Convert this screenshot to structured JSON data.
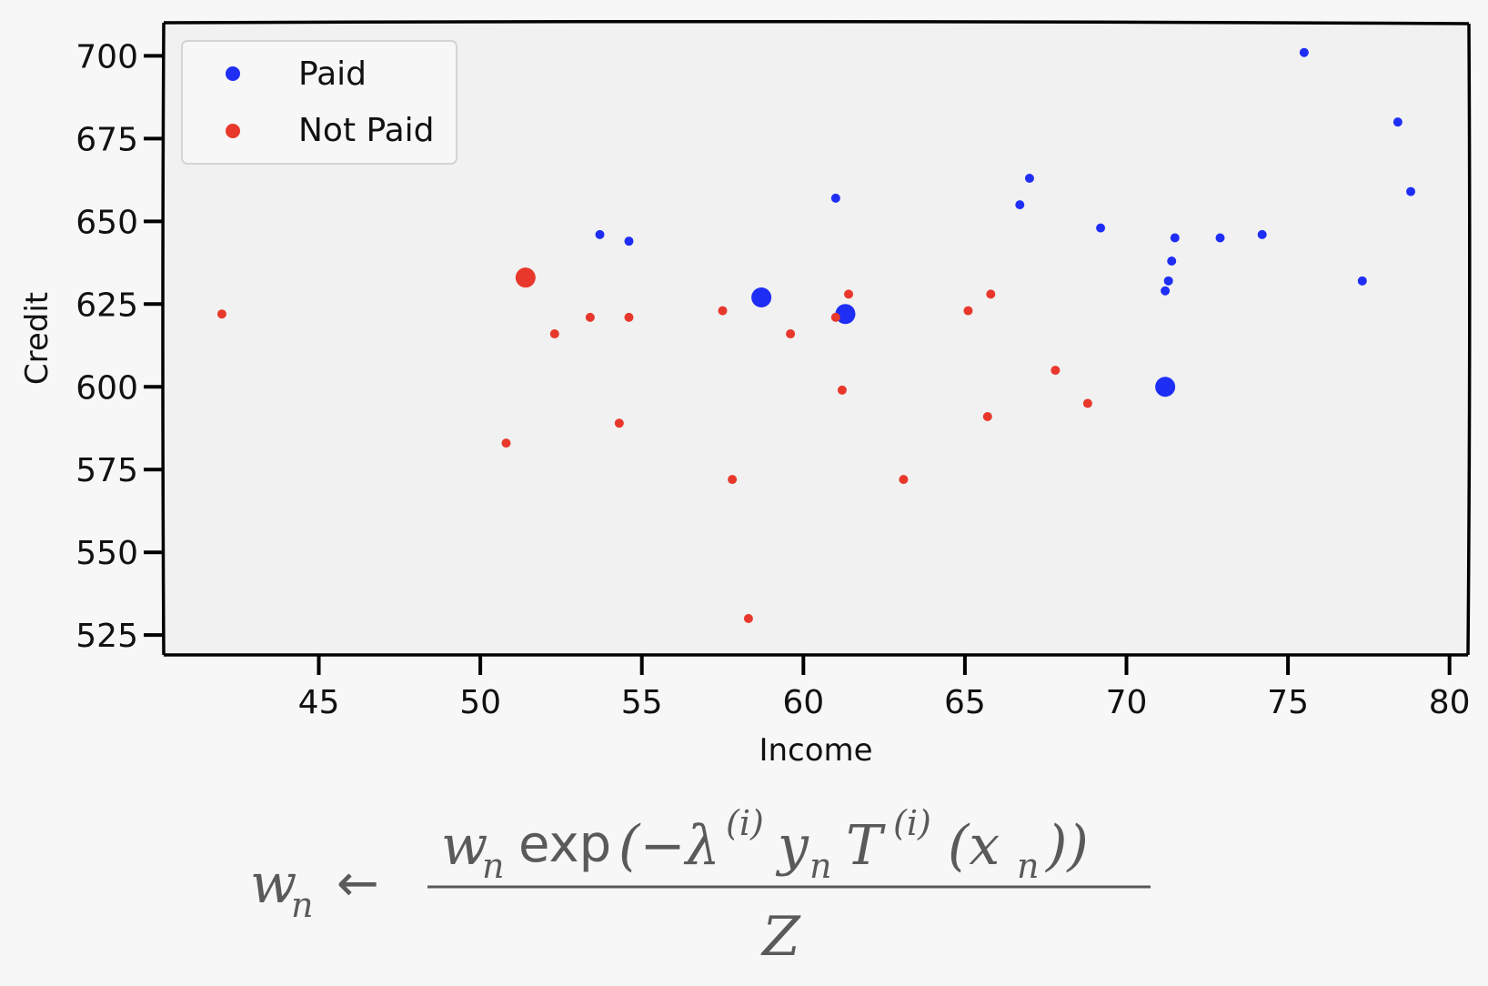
{
  "chart_data": {
    "type": "scatter",
    "title": "",
    "xlabel": "Income",
    "ylabel": "Credit",
    "xlim": [
      40.2,
      80.6
    ],
    "ylim": [
      519,
      710
    ],
    "xticks": [
      45,
      50,
      55,
      60,
      65,
      70,
      75,
      80
    ],
    "yticks": [
      525,
      550,
      575,
      600,
      625,
      650,
      675,
      700
    ],
    "grid": false,
    "legend_position": "top-left",
    "series": [
      {
        "name": "Paid",
        "color": "#1f2ef5",
        "points": [
          {
            "x": 53.7,
            "y": 646,
            "size": "small"
          },
          {
            "x": 54.6,
            "y": 644,
            "size": "small"
          },
          {
            "x": 58.7,
            "y": 627,
            "size": "large"
          },
          {
            "x": 61.0,
            "y": 657,
            "size": "small"
          },
          {
            "x": 61.3,
            "y": 622,
            "size": "large"
          },
          {
            "x": 66.7,
            "y": 655,
            "size": "small"
          },
          {
            "x": 67.0,
            "y": 663,
            "size": "small"
          },
          {
            "x": 69.2,
            "y": 648,
            "size": "small"
          },
          {
            "x": 71.2,
            "y": 600,
            "size": "large"
          },
          {
            "x": 71.2,
            "y": 629,
            "size": "small"
          },
          {
            "x": 71.3,
            "y": 632,
            "size": "small"
          },
          {
            "x": 71.4,
            "y": 638,
            "size": "small"
          },
          {
            "x": 71.5,
            "y": 645,
            "size": "small"
          },
          {
            "x": 72.9,
            "y": 645,
            "size": "small"
          },
          {
            "x": 74.2,
            "y": 646,
            "size": "small"
          },
          {
            "x": 75.5,
            "y": 701,
            "size": "small"
          },
          {
            "x": 77.3,
            "y": 632,
            "size": "small"
          },
          {
            "x": 78.4,
            "y": 680,
            "size": "small"
          },
          {
            "x": 78.8,
            "y": 659,
            "size": "small"
          }
        ]
      },
      {
        "name": "Not Paid",
        "color": "#e8382c",
        "points": [
          {
            "x": 42.0,
            "y": 622,
            "size": "small"
          },
          {
            "x": 50.8,
            "y": 583,
            "size": "small"
          },
          {
            "x": 51.4,
            "y": 633,
            "size": "large"
          },
          {
            "x": 52.3,
            "y": 616,
            "size": "small"
          },
          {
            "x": 53.4,
            "y": 621,
            "size": "small"
          },
          {
            "x": 54.3,
            "y": 589,
            "size": "small"
          },
          {
            "x": 54.6,
            "y": 621,
            "size": "small"
          },
          {
            "x": 57.5,
            "y": 623,
            "size": "small"
          },
          {
            "x": 57.8,
            "y": 572,
            "size": "small"
          },
          {
            "x": 58.3,
            "y": 530,
            "size": "small"
          },
          {
            "x": 59.6,
            "y": 616,
            "size": "small"
          },
          {
            "x": 61.0,
            "y": 621,
            "size": "small"
          },
          {
            "x": 61.2,
            "y": 599,
            "size": "small"
          },
          {
            "x": 61.4,
            "y": 628,
            "size": "small"
          },
          {
            "x": 63.1,
            "y": 572,
            "size": "small"
          },
          {
            "x": 65.1,
            "y": 623,
            "size": "small"
          },
          {
            "x": 65.7,
            "y": 591,
            "size": "small"
          },
          {
            "x": 65.8,
            "y": 628,
            "size": "small"
          },
          {
            "x": 67.8,
            "y": 605,
            "size": "small"
          },
          {
            "x": 68.8,
            "y": 595,
            "size": "small"
          }
        ]
      }
    ]
  },
  "formula": {
    "lhs": "w",
    "lhs_sub": "n",
    "arrow": "←",
    "num_w": "w",
    "num_w_sub": "n",
    "num_exp": "exp",
    "num_open": "(−λ",
    "num_sup_i": "(i)",
    "num_y": "y",
    "num_y_sub": "n",
    "num_T": "T",
    "num_T_sup": "(i)",
    "num_x_open": "(x",
    "num_x_sub": "n",
    "num_close": "))",
    "denominator": "Z"
  }
}
